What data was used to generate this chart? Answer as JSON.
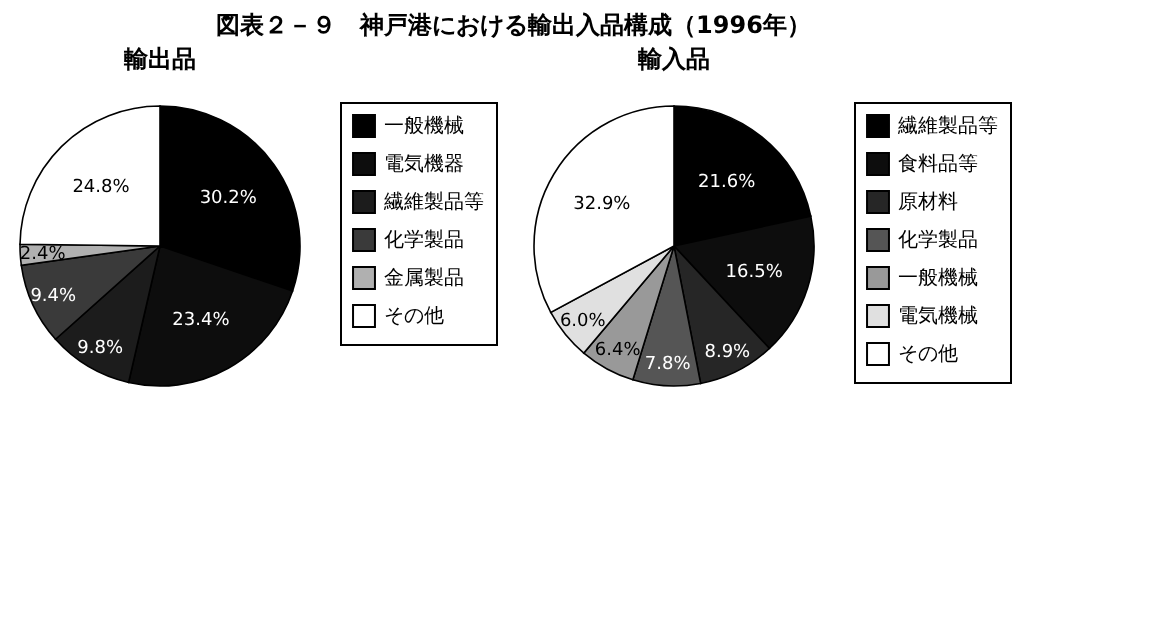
{
  "chart_data": [
    {
      "type": "pie",
      "title": "輸出品",
      "annotations": [
        "図表２－９　神戸港における輸出入品構成（1996年）"
      ],
      "legend": "right",
      "categories": [
        "一般機械",
        "電気機器",
        "繊維製品等",
        "化学製品",
        "金属製品",
        "その他"
      ],
      "values": [
        30.2,
        23.4,
        9.8,
        9.4,
        2.4,
        24.8
      ],
      "value_labels": [
        "30.2%",
        "23.4%",
        "9.8%",
        "9.4%",
        "2.4%",
        "24.8%"
      ],
      "colors": [
        "#000000",
        "#0d0d0d",
        "#1c1c1c",
        "#3a3a3a",
        "#b0b0b0",
        "#ffffff"
      ]
    },
    {
      "type": "pie",
      "title": "輸入品",
      "legend": "right",
      "categories": [
        "繊維製品等",
        "食料品等",
        "原材料",
        "化学製品",
        "一般機械",
        "電気機械",
        "その他"
      ],
      "values": [
        21.6,
        16.5,
        8.9,
        7.8,
        6.4,
        6.0,
        32.9
      ],
      "value_labels": [
        "21.6%",
        "16.5%",
        "8.9%",
        "7.8%",
        "6.4%",
        "6.0%",
        "32.9%"
      ],
      "colors": [
        "#000000",
        "#0d0d0d",
        "#262626",
        "#555555",
        "#999999",
        "#e0e0e0",
        "#ffffff"
      ]
    }
  ]
}
